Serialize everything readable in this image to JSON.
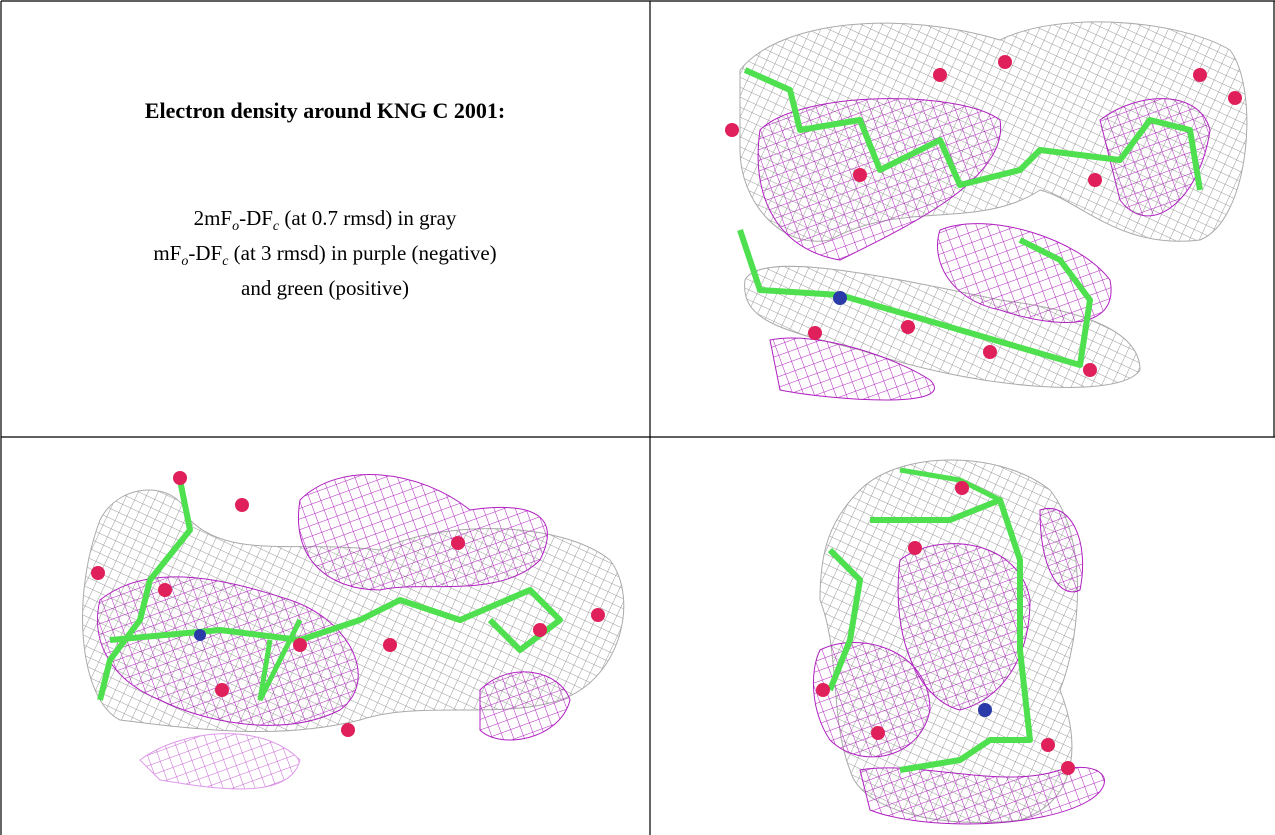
{
  "title": "Electron density around KNG C 2001:",
  "legend": {
    "lines": [
      [
        "2mF",
        "o",
        "-DF",
        "c",
        " (at 0.7 rmsd) in gray"
      ],
      [
        "mF",
        "o",
        "-DF",
        "c",
        " (at 3 rmsd) in purple (negative)"
      ],
      [
        "and green (positive)"
      ]
    ]
  }
}
